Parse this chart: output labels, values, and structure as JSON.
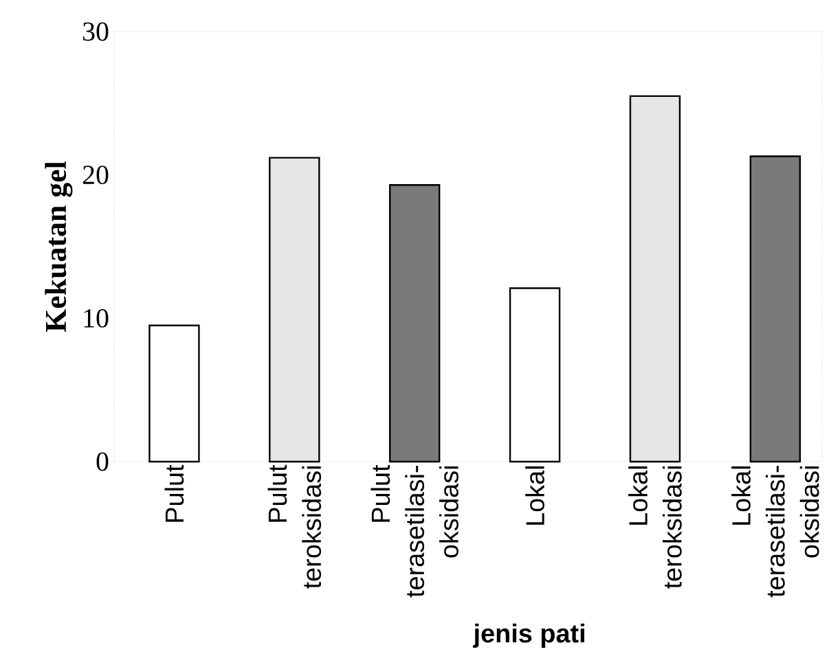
{
  "chart_data": {
    "type": "bar",
    "xlabel": "jenis pati",
    "ylabel": "Kekuatan gel",
    "categories": [
      "Pulut",
      "Pulut teroksidasi",
      "Pulut terasetilasi-oksidasi",
      "Lokal",
      "Lokal teroksidasi",
      "Lokal terasetilasi-oksidasi"
    ],
    "values": [
      9.5,
      21.2,
      19.3,
      12.1,
      25.5,
      21.3
    ],
    "colors": [
      "#ffffff",
      "#e6e6e6",
      "#7a7a7a",
      "#ffffff",
      "#e6e6e6",
      "#7a7a7a"
    ],
    "ylim": [
      0,
      30
    ],
    "yticks": [
      0,
      10,
      20,
      30
    ]
  }
}
